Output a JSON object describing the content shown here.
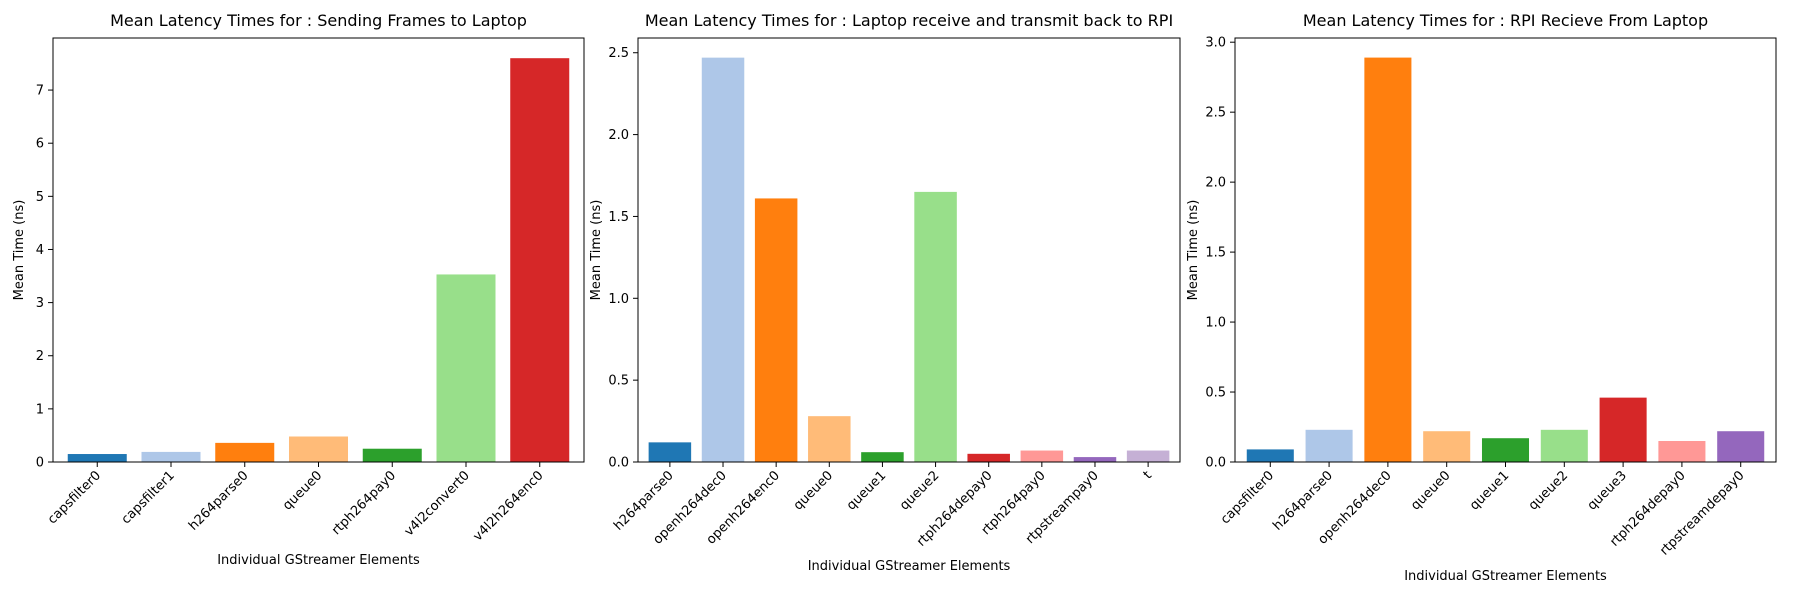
{
  "chart_data": [
    {
      "type": "bar",
      "title": "Mean Latency Times for : Sending Frames to Laptop",
      "xlabel": "Individual GStreamer Elements",
      "ylabel": "Mean Time (ns)",
      "ylim": [
        0,
        7.98
      ],
      "yticks": [
        0,
        1,
        2,
        3,
        4,
        5,
        6,
        7
      ],
      "grid": false,
      "categories": [
        "capsfilter0",
        "capsfilter1",
        "h264parse0",
        "queue0",
        "rtph264pay0",
        "v4l2convert0",
        "v4l2h264enc0"
      ],
      "values": [
        0.15,
        0.19,
        0.36,
        0.48,
        0.25,
        3.53,
        7.6
      ],
      "colors": [
        "#1f77b4",
        "#aec7e8",
        "#ff7f0e",
        "#ffbb78",
        "#2ca02c",
        "#98df8a",
        "#d62728"
      ]
    },
    {
      "type": "bar",
      "title": "Mean Latency Times for : Laptop receive and transmit back to RPI",
      "xlabel": "Individual GStreamer Elements",
      "ylabel": "Mean Time (ns)",
      "ylim": [
        0,
        2.59
      ],
      "yticks": [
        0,
        0.5,
        1.0,
        1.5,
        2.0,
        2.5
      ],
      "grid": false,
      "categories": [
        "h264parse0",
        "openh264dec0",
        "openh264enc0",
        "queue0",
        "queue1",
        "queue2",
        "rtph264depay0",
        "rtph264pay0",
        "rtpstreampay0",
        "t"
      ],
      "values": [
        0.12,
        2.47,
        1.61,
        0.28,
        0.06,
        1.65,
        0.05,
        0.07,
        0.03,
        0.07
      ],
      "colors": [
        "#1f77b4",
        "#aec7e8",
        "#ff7f0e",
        "#ffbb78",
        "#2ca02c",
        "#98df8a",
        "#d62728",
        "#ff9896",
        "#9467bd",
        "#c5b0d5"
      ]
    },
    {
      "type": "bar",
      "title": "Mean Latency Times for : RPI Recieve From Laptop",
      "xlabel": "Individual GStreamer Elements",
      "ylabel": "Mean Time (ns)",
      "ylim": [
        0,
        3.03
      ],
      "yticks": [
        0,
        0.5,
        1.0,
        1.5,
        2.0,
        2.5,
        3.0
      ],
      "grid": false,
      "categories": [
        "capsfilter0",
        "h264parse0",
        "openh264dec0",
        "queue0",
        "queue1",
        "queue2",
        "queue3",
        "rtph264depay0",
        "rtpstreamdepay0"
      ],
      "values": [
        0.09,
        0.23,
        2.89,
        0.22,
        0.17,
        0.23,
        0.46,
        0.15,
        0.22
      ],
      "colors": [
        "#1f77b4",
        "#aec7e8",
        "#ff7f0e",
        "#ffbb78",
        "#2ca02c",
        "#98df8a",
        "#d62728",
        "#ff9896",
        "#9467bd"
      ]
    }
  ]
}
